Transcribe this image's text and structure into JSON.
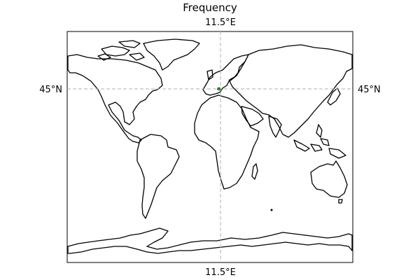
{
  "title": "Frequency",
  "gridlines": {
    "meridian_label": "11.5°E",
    "parallel_label": "45°N"
  },
  "markers": [
    {
      "lon": 11.5,
      "lat": 45,
      "color": "#228b22"
    }
  ],
  "colors": {
    "gridline": "#b0b0b0",
    "coastline": "#000000",
    "marker": "#228b22"
  }
}
